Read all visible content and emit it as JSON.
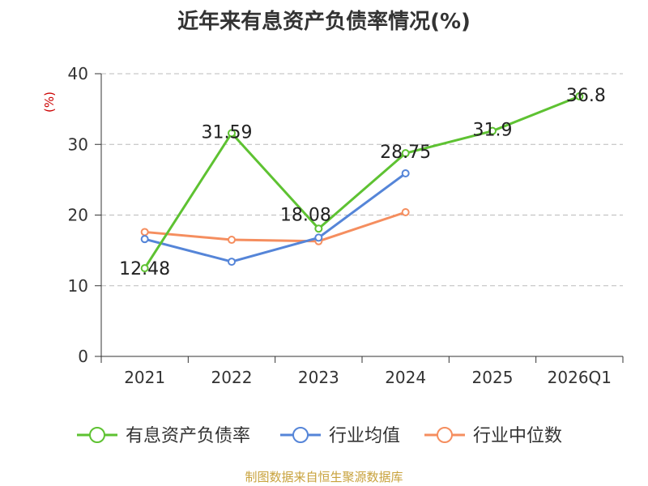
{
  "chart_data": {
    "type": "line",
    "title": "近年来有息资产负债率情况(%)",
    "ylabel": "(%)",
    "categories": [
      "2021",
      "2022",
      "2023",
      "2024",
      "2025",
      "2026Q1"
    ],
    "ylim": [
      0,
      40
    ],
    "yticks": [
      0,
      10,
      20,
      30,
      40
    ],
    "grid": true,
    "legend_position": "bottom",
    "series": [
      {
        "name": "有息资产负债率",
        "color": "#5ec232",
        "values": [
          12.48,
          31.59,
          18.08,
          28.75,
          31.9,
          36.8
        ],
        "labels": [
          "12.48",
          "31.59",
          "18.08",
          "28.75",
          "31.9",
          "36.8"
        ]
      },
      {
        "name": "行业均值",
        "color": "#5585d8",
        "values": [
          16.6,
          13.4,
          16.8,
          25.9,
          null,
          null
        ]
      },
      {
        "name": "行业中位数",
        "color": "#f58e5f",
        "values": [
          17.6,
          16.5,
          16.3,
          20.4,
          null,
          null
        ]
      }
    ]
  },
  "footer": "制图数据来自恒生聚源数据库"
}
